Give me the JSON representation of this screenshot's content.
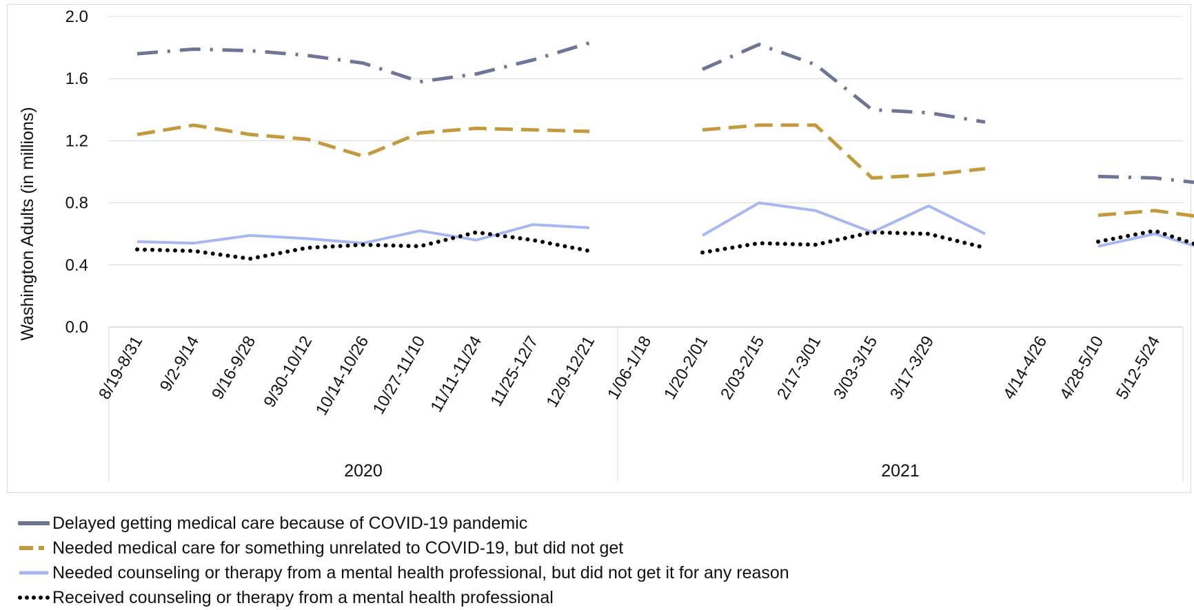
{
  "chart_data": {
    "type": "line",
    "ylabel": "Washington Adults (in millions)",
    "xlabel": "",
    "ylim": [
      0,
      2.0
    ],
    "yticks": [
      "0.0",
      "0.4",
      "0.8",
      "1.2",
      "1.6",
      "2.0"
    ],
    "grid": true,
    "legend_position": "bottom",
    "groups": [
      {
        "year": "2020",
        "categories": [
          "8/19-8/31",
          "9/2-9/14",
          "9/16-9/28",
          "9/30-10/12",
          "10/14-10/26",
          "10/27-11/10",
          "11/11-11/24",
          "11/25-12/7",
          "12/9-12/21"
        ]
      },
      {
        "year": "2021",
        "categories": [
          "1/06-1/18",
          "1/20-2/01",
          "2/03-2/15",
          "2/17-3/01",
          "3/03-3/15",
          "3/17-3/29",
          "",
          "4/14-4/26",
          "4/28-5/10",
          "5/12-5/24"
        ]
      }
    ],
    "series": [
      {
        "name": "Delayed getting medical care because of COVID-19 pandemic",
        "color": "#6f7596",
        "dash": "dashdot",
        "values": [
          1.76,
          1.79,
          1.78,
          1.75,
          1.7,
          1.58,
          1.63,
          1.72,
          1.83,
          null,
          1.66,
          1.82,
          1.69,
          1.4,
          1.38,
          1.32,
          null,
          0.97,
          0.96,
          0.92
        ]
      },
      {
        "name": "Needed medical care for something unrelated to COVID-19, but did not get",
        "color": "#c49a3c",
        "dash": "dashed",
        "values": [
          1.24,
          1.3,
          1.24,
          1.21,
          1.1,
          1.25,
          1.28,
          1.27,
          1.26,
          null,
          1.27,
          1.3,
          1.3,
          0.96,
          0.98,
          1.02,
          null,
          0.72,
          0.75,
          0.7
        ]
      },
      {
        "name": "Needed counseling or therapy from a mental health professional, but did not get it for any reason",
        "color": "#a7b7f4",
        "dash": "solid",
        "values": [
          0.55,
          0.54,
          0.59,
          0.57,
          0.54,
          0.62,
          0.56,
          0.66,
          0.64,
          null,
          0.59,
          0.8,
          0.75,
          0.61,
          0.78,
          0.6,
          null,
          0.52,
          0.6,
          0.49
        ]
      },
      {
        "name": "Received counseling or therapy from a mental health professional",
        "color": "#000000",
        "dash": "dotted",
        "values": [
          0.5,
          0.49,
          0.44,
          0.51,
          0.53,
          0.52,
          0.61,
          0.56,
          0.49,
          null,
          0.48,
          0.54,
          0.53,
          0.61,
          0.6,
          0.51,
          null,
          0.55,
          0.62,
          0.5
        ]
      }
    ]
  }
}
